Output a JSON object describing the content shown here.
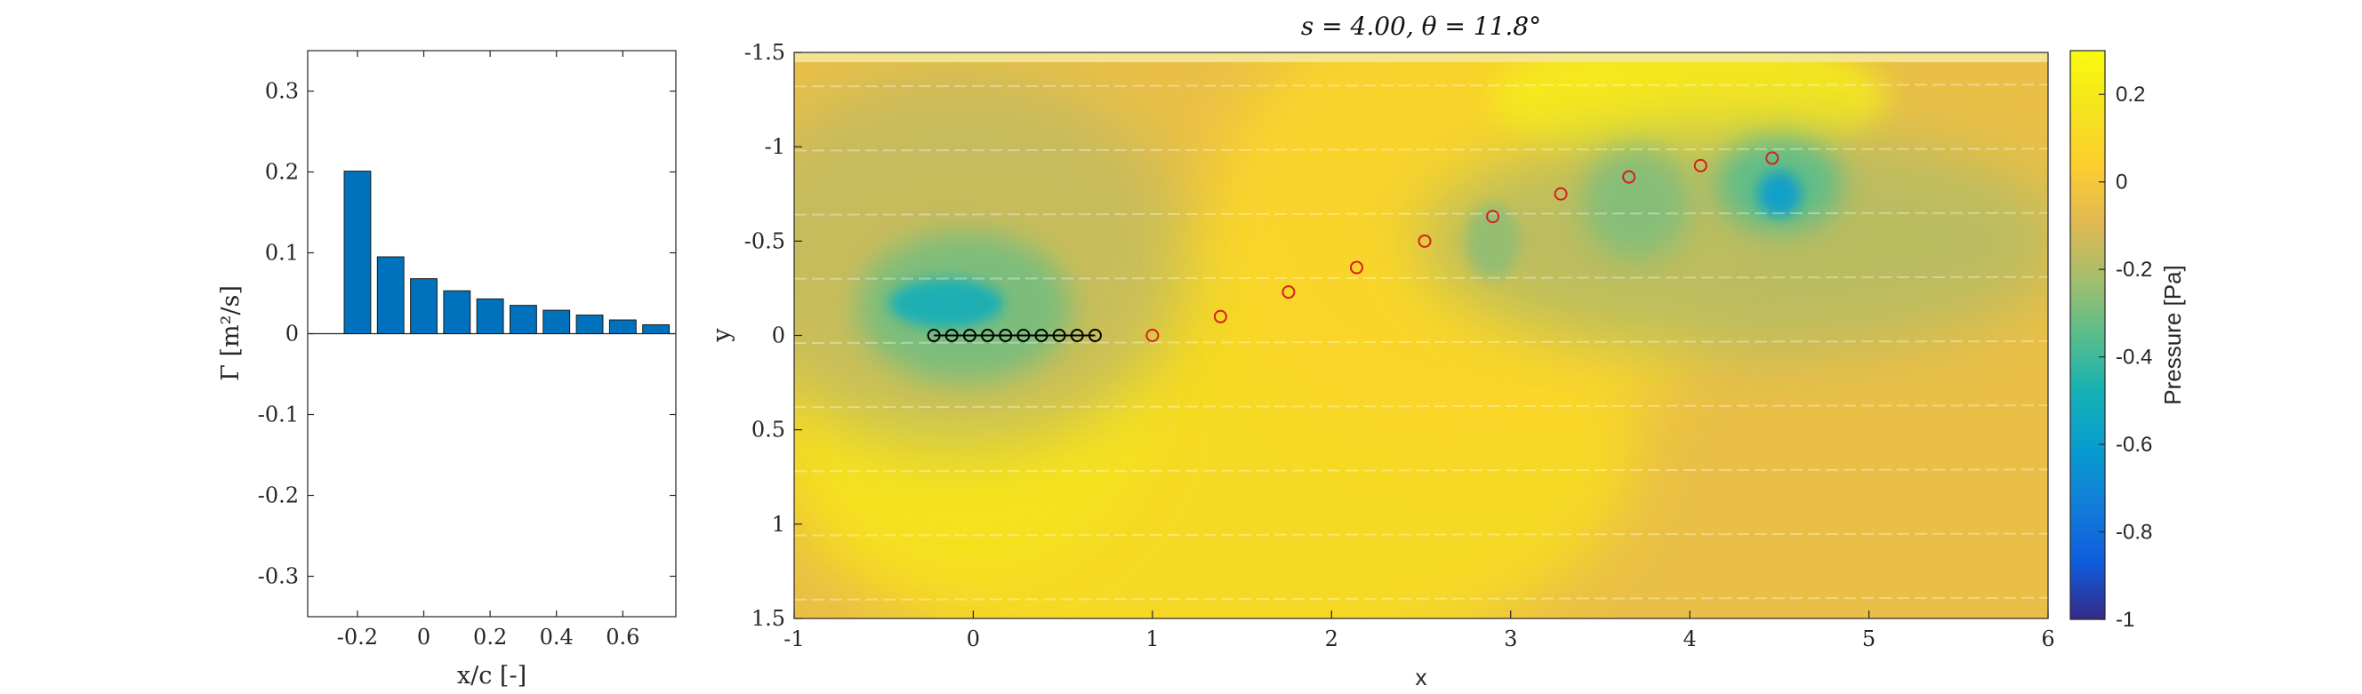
{
  "chart_data": [
    {
      "type": "bar",
      "x": [
        -0.2,
        -0.1,
        0.0,
        0.1,
        0.2,
        0.3,
        0.4,
        0.5,
        0.6,
        0.7
      ],
      "values": [
        0.201,
        0.095,
        0.068,
        0.053,
        0.043,
        0.035,
        0.029,
        0.023,
        0.017,
        0.011
      ],
      "bar_color": "#0072BD",
      "xlim": [
        -0.35,
        0.76
      ],
      "ylim": [
        -0.35,
        0.35
      ],
      "xticks": [
        "-0.2",
        "0",
        "0.2",
        "0.4",
        "0.6"
      ],
      "yticks": [
        "0.3",
        "0.2",
        "0.1",
        "0",
        "-0.1",
        "-0.2",
        "-0.3"
      ],
      "xlabel": "x/c [-]",
      "ylabel": "Γ [m²/s]",
      "grid": false
    },
    {
      "type": "heatmap",
      "title": "s = 4.00, θ = 11.8°",
      "xlim": [
        -1,
        6
      ],
      "ylim": [
        -1.5,
        1.5
      ],
      "y_reversed": true,
      "xticks": [
        "-1",
        "0",
        "1",
        "2",
        "3",
        "4",
        "5",
        "6"
      ],
      "yticks": [
        "-1.5",
        "-1",
        "-0.5",
        "0",
        "0.5",
        "1",
        "1.5"
      ],
      "xlabel": "x",
      "ylabel": "y",
      "colorbar": {
        "label": "Pressure [Pa]",
        "range": [
          -1,
          0.3
        ],
        "ticks": [
          "0.2",
          "0",
          "-0.2",
          "-0.4",
          "-0.6",
          "-0.8",
          "-1"
        ],
        "colormap": "parula"
      },
      "background_level": -0.05,
      "pressure_features": [
        {
          "x": 1.3,
          "y": 0.6,
          "rx": 2.4,
          "ry": 1.2,
          "value": 0.12
        },
        {
          "x": 0.0,
          "y": 0.35,
          "rx": 1.0,
          "ry": 0.9,
          "value": 0.16
        },
        {
          "x": -0.15,
          "y": 0.25,
          "rx": 0.5,
          "ry": 0.3,
          "value": 0.24
        },
        {
          "x": 2.8,
          "y": -0.6,
          "rx": 1.5,
          "ry": 1.2,
          "value": 0.08
        },
        {
          "x": 4.0,
          "y": -1.25,
          "rx": 1.1,
          "ry": 0.35,
          "value": 0.2
        },
        {
          "x": -0.1,
          "y": -0.4,
          "rx": 1.3,
          "ry": 1.0,
          "value": -0.15
        },
        {
          "x": -0.05,
          "y": -0.15,
          "rx": 0.6,
          "ry": 0.4,
          "value": -0.3
        },
        {
          "x": -0.15,
          "y": -0.17,
          "rx": 0.32,
          "ry": 0.13,
          "value": -0.5
        },
        {
          "x": 4.3,
          "y": -0.5,
          "rx": 1.8,
          "ry": 0.6,
          "value": -0.18
        },
        {
          "x": 3.7,
          "y": -0.7,
          "rx": 0.3,
          "ry": 0.3,
          "value": -0.28
        },
        {
          "x": 4.5,
          "y": -0.8,
          "rx": 0.35,
          "ry": 0.25,
          "value": -0.35
        },
        {
          "x": 4.5,
          "y": -0.75,
          "rx": 0.12,
          "ry": 0.12,
          "value": -0.6
        },
        {
          "x": 2.9,
          "y": -0.5,
          "rx": 0.15,
          "ry": 0.2,
          "value": -0.25
        }
      ],
      "plate_points": {
        "x": [
          -0.22,
          -0.12,
          -0.02,
          0.08,
          0.18,
          0.28,
          0.38,
          0.48,
          0.58,
          0.68
        ],
        "y": [
          0,
          0,
          0,
          0,
          0,
          0,
          0,
          0,
          0,
          0
        ],
        "color": "#000000"
      },
      "wake_points": {
        "x": [
          1.0,
          1.38,
          1.76,
          2.14,
          2.52,
          2.9,
          3.28,
          3.66,
          4.06,
          4.46
        ],
        "y": [
          0.0,
          -0.1,
          -0.23,
          -0.36,
          -0.5,
          -0.63,
          -0.75,
          -0.84,
          -0.9,
          -0.94
        ],
        "color": "#D62020"
      },
      "streak_rows_y": [
        -1.32,
        -0.98,
        -0.64,
        -0.3,
        0.04,
        0.38,
        0.72,
        1.06,
        1.4
      ]
    }
  ]
}
